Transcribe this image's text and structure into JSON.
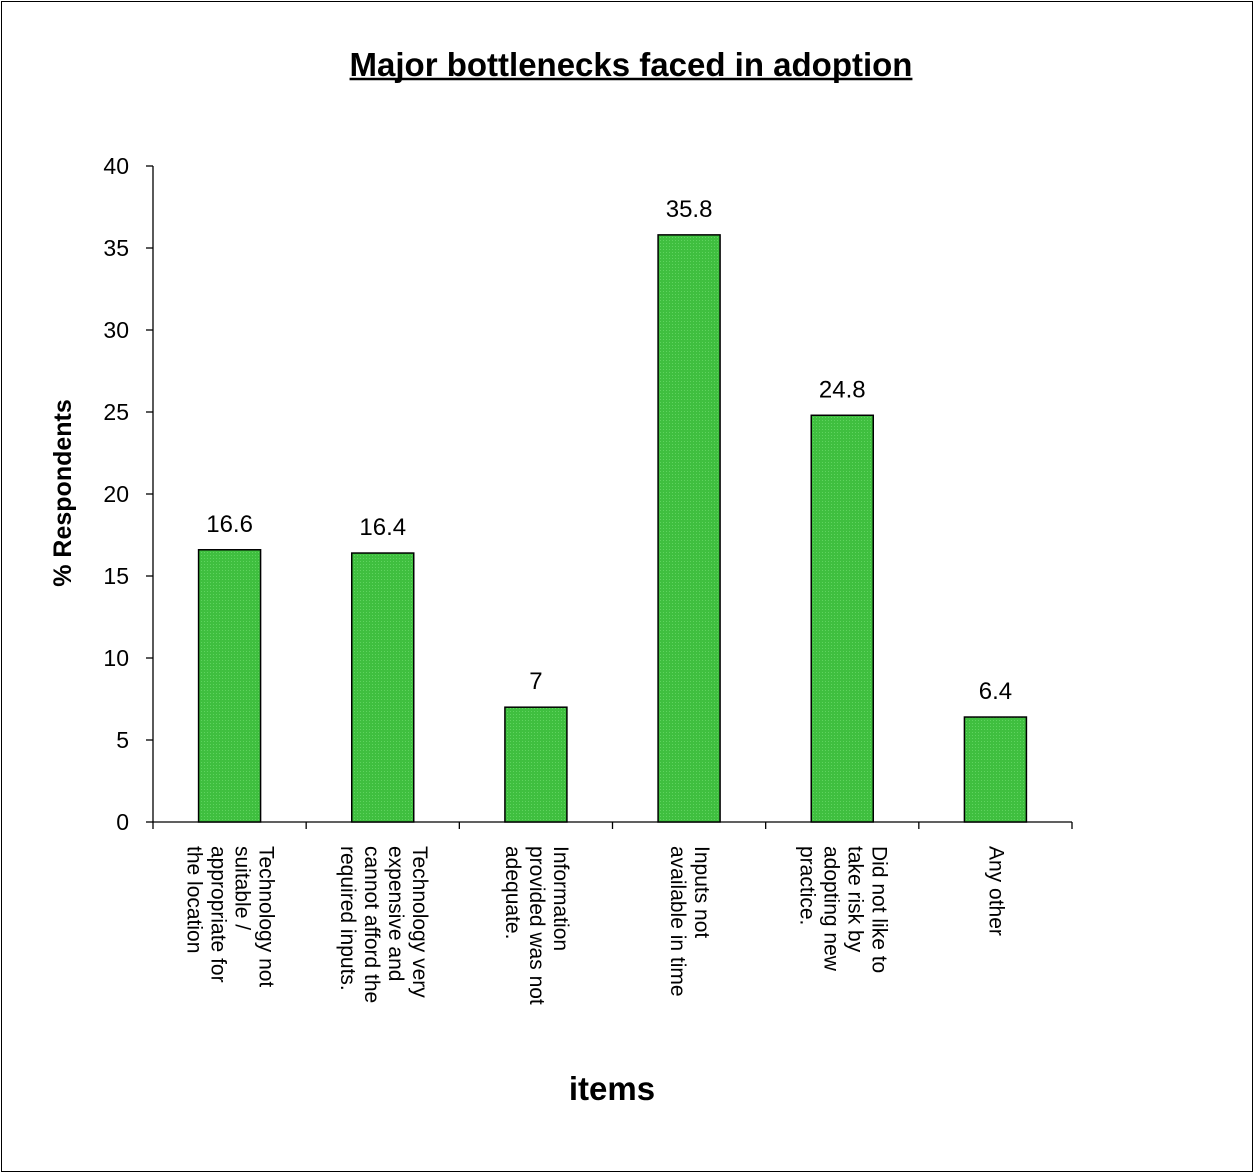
{
  "chart_data": {
    "type": "bar",
    "title": "Major bottlenecks faced in adoption",
    "xlabel": "items",
    "ylabel": "% Respondents",
    "ylim": [
      0,
      40
    ],
    "yticks": [
      0,
      5,
      10,
      15,
      20,
      25,
      30,
      35,
      40
    ],
    "grid": false,
    "legend": "none",
    "bar_color": "#3fbf3f",
    "categories": [
      [
        "Technology not",
        "suitable /",
        "appropriate for",
        "the location"
      ],
      [
        "Technology very",
        "expensive and",
        "cannot afford the",
        "required inputs."
      ],
      [
        "Information",
        "provided was not",
        "adequate."
      ],
      [
        "Inputs not",
        "available in time"
      ],
      [
        "Did not like to",
        "take risk by",
        "adopting new",
        "practice."
      ],
      [
        "Any other"
      ]
    ],
    "values": [
      16.6,
      16.4,
      7,
      35.8,
      24.8,
      6.4
    ],
    "data_labels": [
      "16.6",
      "16.4",
      "7",
      "35.8",
      "24.8",
      "6.4"
    ]
  }
}
